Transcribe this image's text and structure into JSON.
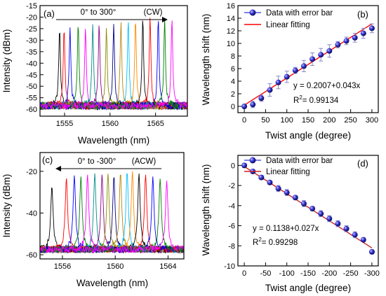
{
  "figure_colors": [
    "#000000",
    "#ff0000",
    "#0000ff",
    "#008000",
    "#ff00ff",
    "#008b8b",
    "#8b008b",
    "#8b8b00",
    "#00008b",
    "#b8860b",
    "#00bfff",
    "#ff8c00"
  ],
  "chart_data": [
    {
      "panel": "a",
      "panel_label": "(a)",
      "type": "line",
      "xlabel": "Wavelength (nm)",
      "ylabel": "Intensity (dBm)",
      "xlim": [
        1552.3,
        1568.5
      ],
      "ylim": [
        -63,
        -15
      ],
      "x_ticks": [
        1555,
        1560,
        1565
      ],
      "y_ticks": [
        -15,
        -20,
        -25,
        -30,
        -35,
        -40,
        -45,
        -50,
        -55,
        -60
      ],
      "annotation_range": "0° to 300°",
      "annotation_dir": "(CW)",
      "arrow": "right",
      "series": [
        {
          "peak_nm": 1554.45,
          "peak_dbm": -24.5
        },
        {
          "peak_nm": 1554.95,
          "peak_dbm": -24.5
        },
        {
          "peak_nm": 1555.6,
          "peak_dbm": -24.5
        },
        {
          "peak_nm": 1556.5,
          "peak_dbm": -22.5
        },
        {
          "peak_nm": 1557.3,
          "peak_dbm": -24.5
        },
        {
          "peak_nm": 1558.1,
          "peak_dbm": -23.0
        },
        {
          "peak_nm": 1558.8,
          "peak_dbm": -22.5
        },
        {
          "peak_nm": 1559.6,
          "peak_dbm": -24.5
        },
        {
          "peak_nm": 1560.4,
          "peak_dbm": -23.0
        },
        {
          "peak_nm": 1561.2,
          "peak_dbm": -22.0
        },
        {
          "peak_nm": 1562.0,
          "peak_dbm": -21.0
        },
        {
          "peak_nm": 1562.8,
          "peak_dbm": -20.5
        },
        {
          "peak_nm": 1563.6,
          "peak_dbm": -20.0
        },
        {
          "peak_nm": 1564.4,
          "peak_dbm": -19.8
        },
        {
          "peak_nm": 1565.3,
          "peak_dbm": -20.2
        },
        {
          "peak_nm": 1566.0,
          "peak_dbm": -20.5
        },
        {
          "peak_nm": 1566.8,
          "peak_dbm": -20.5
        }
      ]
    },
    {
      "panel": "b",
      "panel_label": "(b)",
      "type": "scatter",
      "xlabel": "Twist angle (degree)",
      "ylabel": "Wavelength shift (nm)",
      "xlim": [
        -15,
        315
      ],
      "ylim": [
        -1,
        16
      ],
      "x_ticks": [
        0,
        50,
        100,
        150,
        200,
        250,
        300
      ],
      "y_ticks": [
        0,
        2,
        4,
        6,
        8,
        10,
        12,
        14,
        16
      ],
      "legend": [
        "Data with error bar",
        "Linear fitting"
      ],
      "legend_position": "top-left",
      "fit_equation": "y = 0.2007+0.043x",
      "r2_prefix": "R",
      "r2_exp": "2",
      "r2_value": "= 0.99134",
      "fit": {
        "intercept": 0.2007,
        "slope": 0.043
      },
      "x": [
        0,
        20,
        40,
        60,
        80,
        100,
        120,
        140,
        160,
        180,
        200,
        220,
        240,
        260,
        280,
        300
      ],
      "y": [
        0,
        0.3,
        1.3,
        2.6,
        3.8,
        4.7,
        5.7,
        6.4,
        7.5,
        8.2,
        8.8,
        9.8,
        10.4,
        10.9,
        11.6,
        12.4
      ],
      "error": [
        0.3,
        0.5,
        0.5,
        1.0,
        1.0,
        0.9,
        0.5,
        0.9,
        1.0,
        1.0,
        1.0,
        0.5,
        0.6,
        0.7,
        0.8,
        0.7
      ]
    },
    {
      "panel": "c",
      "panel_label": "(c)",
      "type": "line",
      "xlabel": "Wavelength (nm)",
      "ylabel": "Intensity (dBm)",
      "xlim": [
        1554.3,
        1565.2
      ],
      "ylim": [
        -62,
        -11
      ],
      "x_ticks": [
        1556,
        1560,
        1564
      ],
      "y_ticks": [
        -20,
        -40,
        -60
      ],
      "annotation_range": "0° to -300°",
      "annotation_dir": "(ACW)",
      "arrow": "left",
      "series": [
        {
          "peak_nm": 1555.2,
          "peak_dbm": -27.0
        },
        {
          "peak_nm": 1556.3,
          "peak_dbm": -23.0
        },
        {
          "peak_nm": 1556.9,
          "peak_dbm": -22.0
        },
        {
          "peak_nm": 1557.4,
          "peak_dbm": -22.5
        },
        {
          "peak_nm": 1557.9,
          "peak_dbm": -21.5
        },
        {
          "peak_nm": 1558.45,
          "peak_dbm": -21.0
        },
        {
          "peak_nm": 1559.0,
          "peak_dbm": -21.5
        },
        {
          "peak_nm": 1559.45,
          "peak_dbm": -21.0
        },
        {
          "peak_nm": 1559.9,
          "peak_dbm": -22.0
        },
        {
          "peak_nm": 1560.4,
          "peak_dbm": -20.5
        },
        {
          "peak_nm": 1560.9,
          "peak_dbm": -20.0
        },
        {
          "peak_nm": 1561.3,
          "peak_dbm": -20.0
        },
        {
          "peak_nm": 1561.8,
          "peak_dbm": -21.0
        },
        {
          "peak_nm": 1562.3,
          "peak_dbm": -21.5
        },
        {
          "peak_nm": 1562.85,
          "peak_dbm": -22.5
        },
        {
          "peak_nm": 1563.4,
          "peak_dbm": -23.5
        },
        {
          "peak_nm": 1563.9,
          "peak_dbm": -24.5
        }
      ]
    },
    {
      "panel": "d",
      "panel_label": "(d)",
      "type": "scatter",
      "xlabel": "Twist angle (degree)",
      "ylabel": "Wavelength shift (nm)",
      "xlim": [
        15,
        -315
      ],
      "ylim": [
        -10,
        1
      ],
      "x_ticks": [
        0,
        -50,
        -100,
        -150,
        -200,
        -250,
        -300
      ],
      "y_ticks": [
        0,
        -2,
        -4,
        -6,
        -8,
        -10
      ],
      "legend": [
        "Data with error bar",
        "Linear fitting"
      ],
      "legend_position": "top-left",
      "fit_equation": "y = 0.1138+0.027x",
      "r2_prefix": "R",
      "r2_exp": "2",
      "r2_value": "= 0.99298",
      "fit": {
        "intercept": 0.1138,
        "slope": 0.027
      },
      "x": [
        0,
        -20,
        -40,
        -60,
        -80,
        -100,
        -120,
        -140,
        -160,
        -180,
        -200,
        -220,
        -240,
        -260,
        -280,
        -300
      ],
      "y": [
        0,
        -0.6,
        -1.2,
        -1.7,
        -2.3,
        -2.7,
        -3.2,
        -3.8,
        -4.3,
        -4.8,
        -5.3,
        -5.8,
        -6.3,
        -6.9,
        -7.4,
        -8.6
      ],
      "error": [
        0.2,
        0.2,
        0.2,
        0.2,
        0.3,
        0.3,
        0.2,
        0.3,
        0.2,
        0.3,
        0.3,
        0.3,
        0.3,
        0.3,
        0.2,
        0.2
      ]
    }
  ]
}
